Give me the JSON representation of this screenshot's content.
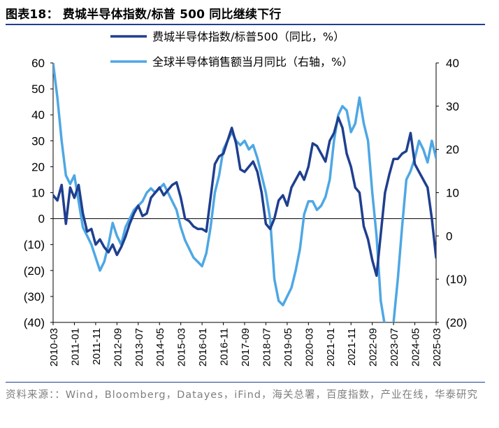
{
  "title": "图表18：  费城半导体指数/标普 500 同比继续下行",
  "source": "资料来源：：Wind，Bloomberg，Datayes，iFind，海关总署，百度指数，产业在线，华泰研究",
  "colors": {
    "rule": "#1f3f8f",
    "series_dark": "#1f3f8f",
    "series_light": "#4ea7e4",
    "source_text": "#7f7f7f"
  },
  "chart_data": {
    "type": "line",
    "x_ticks": [
      "2010-03",
      "2011-01",
      "2011-11",
      "2012-09",
      "2013-07",
      "2014-05",
      "2015-03",
      "2016-01",
      "2016-11",
      "2017-09",
      "2018-07",
      "2019-05",
      "2020-03",
      "2021-01",
      "2021-11",
      "2022-09",
      "2023-07",
      "2024-05",
      "2025-03"
    ],
    "x_start": "2010-03",
    "x_end": "2025-03",
    "left_axis": {
      "ylim": [
        -40,
        60
      ],
      "tick_labels": [
        "60",
        "50",
        "40",
        "30",
        "20",
        "10",
        "0",
        "(10)",
        "(20)",
        "(30)",
        "(40)"
      ]
    },
    "right_axis": {
      "ylim": [
        -20,
        40
      ],
      "tick_labels": [
        "40",
        "30",
        "20",
        "10",
        "0",
        "(10)",
        "(20)"
      ]
    },
    "legend_position": "top-center",
    "series": [
      {
        "name": "费城半导体指数/标普500（同比，%）",
        "axis": "left",
        "color": "#1f3f8f",
        "x": [
          "2010-03",
          "2010-05",
          "2010-07",
          "2010-09",
          "2010-11",
          "2011-01",
          "2011-03",
          "2011-05",
          "2011-07",
          "2011-09",
          "2011-11",
          "2012-01",
          "2012-03",
          "2012-05",
          "2012-07",
          "2012-09",
          "2012-11",
          "2013-01",
          "2013-03",
          "2013-05",
          "2013-07",
          "2013-09",
          "2013-11",
          "2014-01",
          "2014-03",
          "2014-05",
          "2014-07",
          "2014-09",
          "2014-11",
          "2015-01",
          "2015-03",
          "2015-05",
          "2015-07",
          "2015-09",
          "2015-11",
          "2016-01",
          "2016-03",
          "2016-05",
          "2016-07",
          "2016-09",
          "2016-11",
          "2017-01",
          "2017-03",
          "2017-05",
          "2017-07",
          "2017-09",
          "2017-11",
          "2018-01",
          "2018-03",
          "2018-05",
          "2018-07",
          "2018-09",
          "2018-11",
          "2019-01",
          "2019-03",
          "2019-05",
          "2019-07",
          "2019-09",
          "2019-11",
          "2020-01",
          "2020-03",
          "2020-05",
          "2020-07",
          "2020-09",
          "2020-11",
          "2021-01",
          "2021-03",
          "2021-05",
          "2021-07",
          "2021-09",
          "2021-11",
          "2022-01",
          "2022-03",
          "2022-05",
          "2022-07",
          "2022-09",
          "2022-11",
          "2023-01",
          "2023-03",
          "2023-05",
          "2023-07",
          "2023-09",
          "2023-11",
          "2024-01",
          "2024-03",
          "2024-05",
          "2024-07",
          "2024-09",
          "2024-11",
          "2025-01",
          "2025-03"
        ],
        "values": [
          9,
          7,
          13,
          -2,
          12,
          8,
          13,
          2,
          -5,
          -4,
          -10,
          -8,
          -11,
          -13,
          -10,
          -14,
          -11,
          -7,
          -2,
          2,
          5,
          1,
          2,
          8,
          10,
          12,
          9,
          11,
          13,
          14,
          8,
          0,
          -1,
          -3,
          -4,
          -4,
          -5,
          8,
          21,
          24,
          25,
          30,
          35,
          29,
          19,
          18,
          20,
          22,
          18,
          10,
          -2,
          -4,
          0,
          7,
          9,
          5,
          12,
          15,
          18,
          15,
          20,
          29,
          28,
          25,
          22,
          30,
          33,
          39,
          35,
          25,
          20,
          12,
          10,
          -3,
          -8,
          -16,
          -22,
          -6,
          10,
          17,
          23,
          23,
          25,
          26,
          33,
          21,
          18,
          15,
          12,
          0,
          -15
        ]
      },
      {
        "name": "全球半导体销售额当月同比（右轴，%）",
        "axis": "right",
        "color": "#4ea7e4",
        "x": [
          "2010-03",
          "2010-05",
          "2010-07",
          "2010-09",
          "2010-11",
          "2011-01",
          "2011-03",
          "2011-05",
          "2011-07",
          "2011-09",
          "2011-11",
          "2012-01",
          "2012-03",
          "2012-05",
          "2012-07",
          "2012-09",
          "2012-11",
          "2013-01",
          "2013-03",
          "2013-05",
          "2013-07",
          "2013-09",
          "2013-11",
          "2014-01",
          "2014-03",
          "2014-05",
          "2014-07",
          "2014-09",
          "2014-11",
          "2015-01",
          "2015-03",
          "2015-05",
          "2015-07",
          "2015-09",
          "2015-11",
          "2016-01",
          "2016-03",
          "2016-05",
          "2016-07",
          "2016-09",
          "2016-11",
          "2017-01",
          "2017-03",
          "2017-05",
          "2017-07",
          "2017-09",
          "2017-11",
          "2018-01",
          "2018-03",
          "2018-05",
          "2018-07",
          "2018-09",
          "2018-11",
          "2019-01",
          "2019-03",
          "2019-05",
          "2019-07",
          "2019-09",
          "2019-11",
          "2020-01",
          "2020-03",
          "2020-05",
          "2020-07",
          "2020-09",
          "2020-11",
          "2021-01",
          "2021-03",
          "2021-05",
          "2021-07",
          "2021-09",
          "2021-11",
          "2022-01",
          "2022-03",
          "2022-05",
          "2022-07",
          "2022-09",
          "2022-11",
          "2023-01",
          "2023-03",
          "2023-05",
          "2023-07",
          "2023-09",
          "2023-11",
          "2024-01",
          "2024-03",
          "2024-05",
          "2024-07",
          "2024-09",
          "2024-11",
          "2025-01",
          "2025-03"
        ],
        "values": [
          40,
          32,
          22,
          14,
          12,
          14,
          8,
          2,
          0,
          -2,
          -5,
          -8,
          -6,
          -2,
          3,
          0,
          -2,
          2,
          4,
          6,
          7,
          8,
          10,
          11,
          10,
          11,
          12,
          10,
          8,
          6,
          2,
          -1,
          -3,
          -5,
          -6,
          -7,
          -4,
          2,
          10,
          14,
          20,
          22,
          24,
          22,
          21,
          22,
          20,
          21,
          18,
          14,
          10,
          4,
          -10,
          -15,
          -16,
          -14,
          -12,
          -8,
          -3,
          5,
          8,
          8,
          6,
          7,
          9,
          13,
          22,
          28,
          30,
          29,
          24,
          26,
          32,
          26,
          22,
          10,
          0,
          -15,
          -21,
          -21,
          -20,
          -10,
          2,
          13,
          15,
          18,
          22,
          20,
          17,
          22,
          18
        ]
      }
    ]
  }
}
